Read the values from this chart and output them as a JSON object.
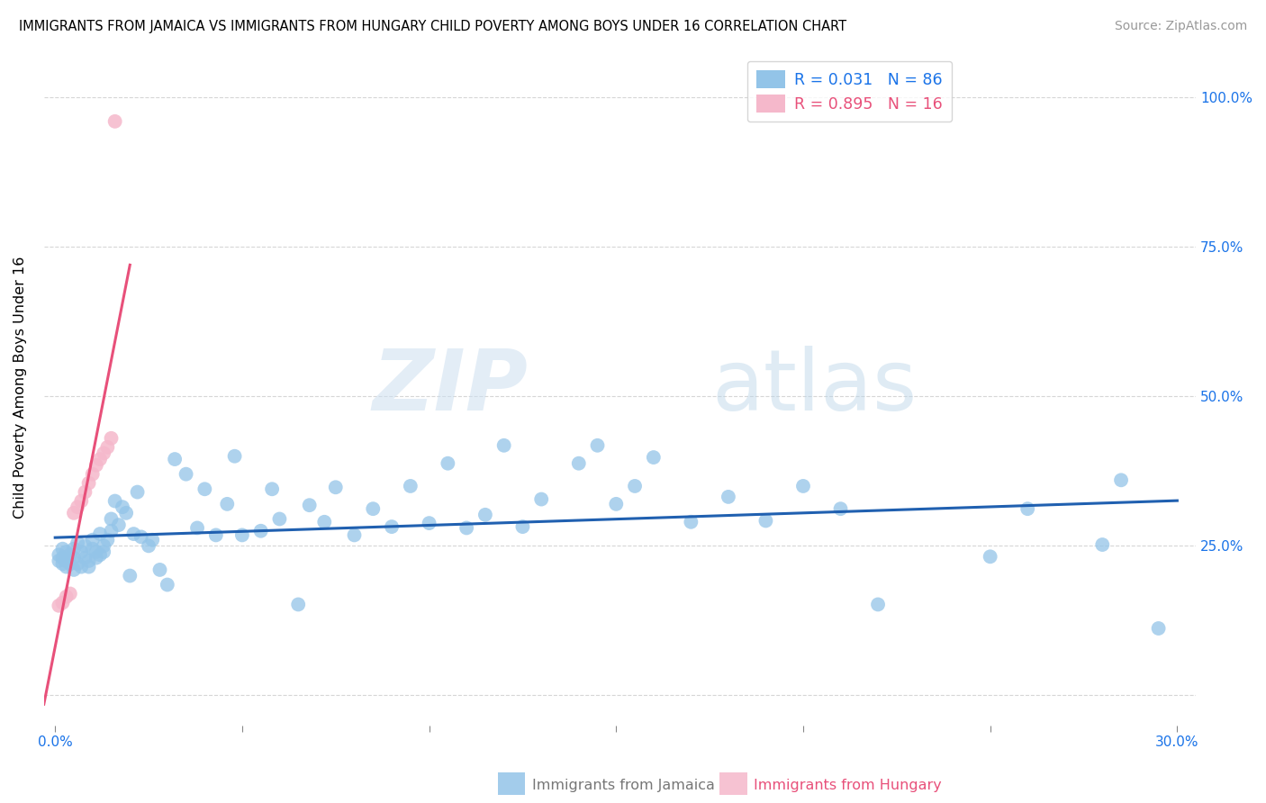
{
  "title": "IMMIGRANTS FROM JAMAICA VS IMMIGRANTS FROM HUNGARY CHILD POVERTY AMONG BOYS UNDER 16 CORRELATION CHART",
  "source": "Source: ZipAtlas.com",
  "ylabel": "Child Poverty Among Boys Under 16",
  "xlim": [
    -0.003,
    0.305
  ],
  "ylim": [
    -0.05,
    1.08
  ],
  "xtick_vals": [
    0.0,
    0.05,
    0.1,
    0.15,
    0.2,
    0.25,
    0.3
  ],
  "xticklabels": [
    "0.0%",
    "",
    "",
    "",
    "",
    "",
    "30.0%"
  ],
  "ytick_vals": [
    0.0,
    0.25,
    0.5,
    0.75,
    1.0
  ],
  "yticklabels_right": [
    "",
    "25.0%",
    "50.0%",
    "75.0%",
    "100.0%"
  ],
  "jamaica_color": "#93c4e8",
  "hungary_color": "#f5b8cb",
  "jamaica_line_color": "#2060b0",
  "hungary_line_color": "#e8507a",
  "legend_jamaica": "R = 0.031   N = 86",
  "legend_hungary": "R = 0.895   N = 16",
  "legend_jamaica_color": "#4a90d9",
  "legend_hungary_color": "#e8507a",
  "watermark_zip": "ZIP",
  "watermark_atlas": "atlas",
  "bottom_label_jamaica": "Immigrants from Jamaica",
  "bottom_label_hungary": "Immigrants from Hungary",
  "jamaica_x": [
    0.001,
    0.001,
    0.002,
    0.002,
    0.002,
    0.003,
    0.003,
    0.003,
    0.004,
    0.004,
    0.005,
    0.005,
    0.005,
    0.006,
    0.006,
    0.007,
    0.007,
    0.008,
    0.008,
    0.009,
    0.009,
    0.01,
    0.01,
    0.011,
    0.011,
    0.012,
    0.012,
    0.013,
    0.013,
    0.014,
    0.015,
    0.015,
    0.016,
    0.017,
    0.018,
    0.019,
    0.02,
    0.021,
    0.022,
    0.023,
    0.025,
    0.026,
    0.028,
    0.03,
    0.032,
    0.035,
    0.038,
    0.04,
    0.043,
    0.046,
    0.048,
    0.05,
    0.055,
    0.058,
    0.06,
    0.065,
    0.068,
    0.072,
    0.075,
    0.08,
    0.085,
    0.09,
    0.095,
    0.1,
    0.105,
    0.11,
    0.115,
    0.12,
    0.125,
    0.13,
    0.14,
    0.145,
    0.15,
    0.155,
    0.16,
    0.17,
    0.18,
    0.19,
    0.2,
    0.21,
    0.22,
    0.25,
    0.26,
    0.28,
    0.285,
    0.295
  ],
  "jamaica_y": [
    0.225,
    0.235,
    0.22,
    0.23,
    0.245,
    0.215,
    0.24,
    0.225,
    0.22,
    0.235,
    0.21,
    0.245,
    0.23,
    0.255,
    0.22,
    0.215,
    0.24,
    0.23,
    0.25,
    0.215,
    0.225,
    0.245,
    0.26,
    0.23,
    0.24,
    0.235,
    0.27,
    0.24,
    0.25,
    0.26,
    0.295,
    0.275,
    0.325,
    0.285,
    0.315,
    0.305,
    0.2,
    0.27,
    0.34,
    0.265,
    0.25,
    0.26,
    0.21,
    0.185,
    0.395,
    0.37,
    0.28,
    0.345,
    0.268,
    0.32,
    0.4,
    0.268,
    0.275,
    0.345,
    0.295,
    0.152,
    0.318,
    0.29,
    0.348,
    0.268,
    0.312,
    0.282,
    0.35,
    0.288,
    0.388,
    0.28,
    0.302,
    0.418,
    0.282,
    0.328,
    0.388,
    0.418,
    0.32,
    0.35,
    0.398,
    0.29,
    0.332,
    0.292,
    0.35,
    0.312,
    0.152,
    0.232,
    0.312,
    0.252,
    0.36,
    0.112
  ],
  "hungary_x": [
    0.001,
    0.002,
    0.003,
    0.004,
    0.005,
    0.006,
    0.007,
    0.008,
    0.009,
    0.01,
    0.011,
    0.012,
    0.013,
    0.014,
    0.015,
    0.016
  ],
  "hungary_y": [
    0.15,
    0.155,
    0.165,
    0.17,
    0.305,
    0.315,
    0.325,
    0.34,
    0.355,
    0.37,
    0.385,
    0.395,
    0.405,
    0.415,
    0.43,
    0.96
  ],
  "hungary_line_x": [
    -0.003,
    0.02
  ],
  "jamaica_line_x": [
    0.0,
    0.3
  ]
}
